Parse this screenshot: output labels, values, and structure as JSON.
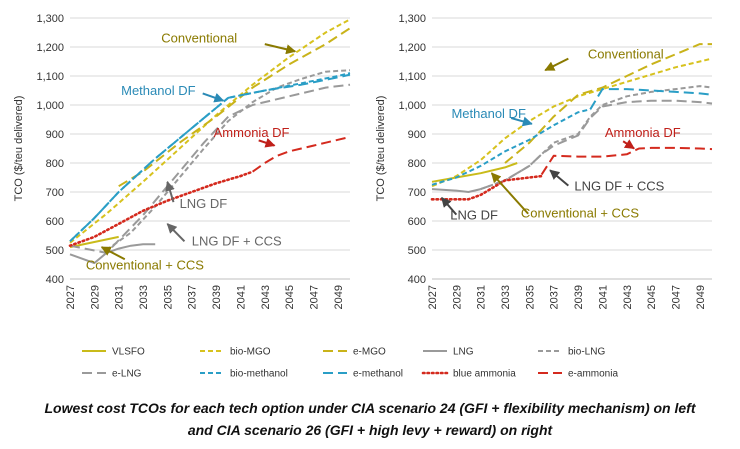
{
  "caption": {
    "line1": "Lowest cost TCOs for each tech option under CIA scenario 24 (GFI + flexibility mechanism) on left",
    "line2": "and CIA scenario 26 (GFI + high levy + reward) on right"
  },
  "styles": {
    "VLSFO": {
      "color": "#c9bb1a",
      "dash": ""
    },
    "bio-MGO": {
      "color": "#d7c21e",
      "dash": "5,3"
    },
    "e-MGO": {
      "color": "#c9b31a",
      "dash": "10,5"
    },
    "LNG": {
      "color": "#9a9a9a",
      "dash": ""
    },
    "bio-LNG": {
      "color": "#9a9a9a",
      "dash": "5,3"
    },
    "e-LNG": {
      "color": "#9a9a9a",
      "dash": "10,5"
    },
    "bio-methanol": {
      "color": "#2a9ec6",
      "dash": "5,3"
    },
    "e-methanol": {
      "color": "#2a9ec6",
      "dash": "10,5"
    },
    "blue ammonia": {
      "color": "#d42a1e",
      "dash": "1.5,3"
    },
    "e-ammonia": {
      "color": "#d42a1e",
      "dash": "10,5"
    }
  },
  "legend": [
    "VLSFO",
    "bio-MGO",
    "e-MGO",
    "LNG",
    "bio-LNG",
    "e-LNG",
    "bio-methanol",
    "e-methanol",
    "blue ammonia",
    "e-ammonia"
  ],
  "chart_data": [
    {
      "type": "line",
      "ylabel": "TCO ($/teu delivered)",
      "ylim": [
        400,
        1300
      ],
      "yticks": [
        400,
        500,
        600,
        700,
        800,
        900,
        "1,000",
        "1,100",
        "1,200",
        "1,300"
      ],
      "xticks": [
        "2027",
        "2029",
        "2031",
        "2033",
        "2035",
        "2037",
        "2039",
        "2041",
        "2043",
        "2045",
        "2047",
        "2049"
      ],
      "xlim": [
        2027,
        2050
      ],
      "series": [
        {
          "name": "VLSFO",
          "x": [
            2027,
            2031
          ],
          "values": [
            510,
            545
          ]
        },
        {
          "name": "bio-MGO",
          "x": [
            2027,
            2030,
            2033,
            2036,
            2039,
            2042,
            2045,
            2048,
            2050
          ],
          "values": [
            525,
            625,
            735,
            850,
            965,
            1070,
            1165,
            1250,
            1295
          ]
        },
        {
          "name": "e-MGO",
          "x": [
            2031,
            2033,
            2036,
            2039,
            2042,
            2045,
            2048,
            2050
          ],
          "values": [
            720,
            770,
            870,
            960,
            1060,
            1140,
            1210,
            1265
          ]
        },
        {
          "name": "LNG",
          "x": [
            2027,
            2029,
            2030,
            2031,
            2032,
            2033,
            2034
          ],
          "values": [
            485,
            455,
            490,
            505,
            515,
            520,
            520
          ]
        },
        {
          "name": "bio-LNG",
          "x": [
            2030,
            2032,
            2034,
            2036,
            2038,
            2040,
            2042,
            2044,
            2046,
            2048,
            2050
          ],
          "values": [
            500,
            560,
            650,
            750,
            850,
            945,
            1010,
            1060,
            1090,
            1115,
            1120
          ]
        },
        {
          "name": "e-LNG",
          "x": [
            2027,
            2030,
            2033,
            2036,
            2038,
            2040,
            2042,
            2044,
            2046,
            2048,
            2050
          ],
          "values": [
            515,
            490,
            620,
            770,
            870,
            960,
            1000,
            1020,
            1040,
            1060,
            1070
          ]
        },
        {
          "name": "bio-methanol",
          "x": [
            2027,
            2029,
            2031,
            2034,
            2037,
            2040,
            2043,
            2046,
            2049,
            2050
          ],
          "values": [
            530,
            610,
            700,
            815,
            920,
            1025,
            1050,
            1075,
            1100,
            1110
          ]
        },
        {
          "name": "e-methanol",
          "x": [
            2027,
            2029,
            2031,
            2034,
            2037,
            2040,
            2043,
            2046,
            2049,
            2050
          ],
          "values": [
            530,
            610,
            700,
            815,
            920,
            1025,
            1050,
            1070,
            1095,
            1105
          ]
        },
        {
          "name": "blue ammonia",
          "x": [
            2027,
            2029,
            2031,
            2033,
            2035,
            2037,
            2039,
            2041,
            2042
          ],
          "values": [
            515,
            545,
            590,
            635,
            670,
            700,
            730,
            755,
            770
          ]
        },
        {
          "name": "e-ammonia",
          "x": [
            2042,
            2043,
            2044,
            2045,
            2046,
            2047,
            2048,
            2049,
            2050
          ],
          "values": [
            770,
            800,
            825,
            840,
            850,
            860,
            870,
            880,
            890
          ]
        }
      ],
      "annotations": [
        {
          "text": "Conventional",
          "color": "#8a7a00",
          "tx": 2034.5,
          "ty": 1215,
          "ax1": 2043.0,
          "ay1": 1210,
          "ax2": 2045.5,
          "ay2": 1185
        },
        {
          "text": "Methanol DF",
          "color": "#2a8ab6",
          "tx": 2031.2,
          "ty": 1035,
          "ax1": 2037.9,
          "ay1": 1040,
          "ax2": 2039.6,
          "ay2": 1015
        },
        {
          "text": "Ammonia DF",
          "color": "#c0201a",
          "tx": 2038.8,
          "ty": 890,
          "ax1": 2042.5,
          "ay1": 878,
          "ax2": 2043.8,
          "ay2": 860
        },
        {
          "text": "LNG DF",
          "color": "#666666",
          "tx": 2036.0,
          "ty": 645,
          "ax1": 2035.5,
          "ay1": 665,
          "ax2": 2035.0,
          "ay2": 735
        },
        {
          "text": "LNG DF + CCS",
          "color": "#666666",
          "tx": 2037.0,
          "ty": 515,
          "ax1": 2036.4,
          "ay1": 530,
          "ax2": 2035.0,
          "ay2": 590
        },
        {
          "text": "Conventional + CCS",
          "color": "#8a7a00",
          "tx": 2028.3,
          "ty": 432,
          "ax1": 2031.5,
          "ay1": 468,
          "ax2": 2029.6,
          "ay2": 510
        }
      ]
    },
    {
      "type": "line",
      "ylabel": "TCO ($/teu delivered)",
      "ylim": [
        400,
        1300
      ],
      "yticks": [
        400,
        500,
        600,
        700,
        800,
        900,
        "1,000",
        "1,100",
        "1,200",
        "1,300"
      ],
      "xticks": [
        "2027",
        "2029",
        "2031",
        "2033",
        "2035",
        "2037",
        "2039",
        "2041",
        "2043",
        "2045",
        "2047",
        "2049"
      ],
      "xlim": [
        2027,
        2050
      ],
      "series": [
        {
          "name": "VLSFO",
          "x": [
            2027,
            2029,
            2031,
            2033,
            2034
          ],
          "values": [
            735,
            750,
            765,
            785,
            800
          ]
        },
        {
          "name": "bio-MGO",
          "x": [
            2027,
            2029,
            2031,
            2033,
            2035,
            2037,
            2039,
            2041,
            2043,
            2045,
            2047,
            2049,
            2050
          ],
          "values": [
            720,
            755,
            810,
            885,
            945,
            995,
            1030,
            1055,
            1080,
            1105,
            1130,
            1150,
            1160
          ]
        },
        {
          "name": "e-MGO",
          "x": [
            2033,
            2035,
            2037,
            2039,
            2041,
            2043,
            2045,
            2047,
            2049,
            2050
          ],
          "values": [
            800,
            870,
            960,
            1035,
            1060,
            1100,
            1140,
            1175,
            1210,
            1210
          ]
        },
        {
          "name": "LNG",
          "x": [
            2027,
            2029,
            2030,
            2031
          ],
          "values": [
            710,
            705,
            700,
            710
          ]
        },
        {
          "name": "bio-LNG",
          "x": [
            2031,
            2033,
            2035,
            2036,
            2037,
            2039,
            2040,
            2041,
            2043,
            2045,
            2047,
            2049,
            2050
          ],
          "values": [
            710,
            740,
            790,
            830,
            870,
            900,
            960,
            1000,
            1030,
            1045,
            1055,
            1065,
            1060
          ]
        },
        {
          "name": "e-LNG",
          "x": [
            2031,
            2033,
            2035,
            2036,
            2037,
            2039,
            2040,
            2041,
            2043,
            2045,
            2047,
            2049,
            2050
          ],
          "values": [
            710,
            740,
            790,
            830,
            860,
            895,
            955,
            995,
            1010,
            1015,
            1015,
            1010,
            1005
          ]
        },
        {
          "name": "bio-methanol",
          "x": [
            2027,
            2029,
            2031,
            2033,
            2035,
            2037,
            2039,
            2040
          ],
          "values": [
            725,
            750,
            790,
            840,
            880,
            930,
            975,
            985
          ]
        },
        {
          "name": "e-methanol",
          "x": [
            2040,
            2041,
            2043,
            2045,
            2047,
            2049,
            2050
          ],
          "values": [
            985,
            1055,
            1055,
            1050,
            1045,
            1040,
            1035
          ]
        },
        {
          "name": "blue ammonia",
          "x": [
            2027,
            2029,
            2030,
            2031,
            2033,
            2035,
            2036
          ],
          "values": [
            675,
            675,
            675,
            690,
            740,
            750,
            755
          ]
        },
        {
          "name": "e-ammonia",
          "x": [
            2036,
            2037,
            2039,
            2041,
            2043,
            2044,
            2045,
            2047,
            2049,
            2050
          ],
          "values": [
            760,
            825,
            822,
            822,
            830,
            850,
            852,
            852,
            850,
            848
          ]
        }
      ],
      "annotations": [
        {
          "text": "Conventional",
          "color": "#8a7a00",
          "tx": 2039.8,
          "ty": 1160,
          "ax1": 2038.2,
          "ay1": 1160,
          "ax2": 2036.3,
          "ay2": 1120
        },
        {
          "text": "Methanol DF",
          "color": "#2a8ab6",
          "tx": 2028.6,
          "ty": 955,
          "ax1": 2033.5,
          "ay1": 955,
          "ax2": 2035.2,
          "ay2": 935
        },
        {
          "text": "Ammonia DF",
          "color": "#c0201a",
          "tx": 2041.2,
          "ty": 890,
          "ax1": 2042.7,
          "ay1": 875,
          "ax2": 2043.6,
          "ay2": 850
        },
        {
          "text": "LNG DF + CCS",
          "color": "#444444",
          "tx": 2038.7,
          "ty": 705,
          "ax1": 2038.2,
          "ay1": 722,
          "ax2": 2036.7,
          "ay2": 775
        },
        {
          "text": "LNG DF",
          "color": "#444444",
          "tx": 2028.5,
          "ty": 605,
          "ax1": 2029.0,
          "ay1": 622,
          "ax2": 2027.8,
          "ay2": 680
        },
        {
          "text": "Conventional + CCS",
          "color": "#8a7a00",
          "tx": 2034.3,
          "ty": 612,
          "ax1": 2034.9,
          "ay1": 625,
          "ax2": 2031.9,
          "ay2": 765
        }
      ]
    }
  ]
}
